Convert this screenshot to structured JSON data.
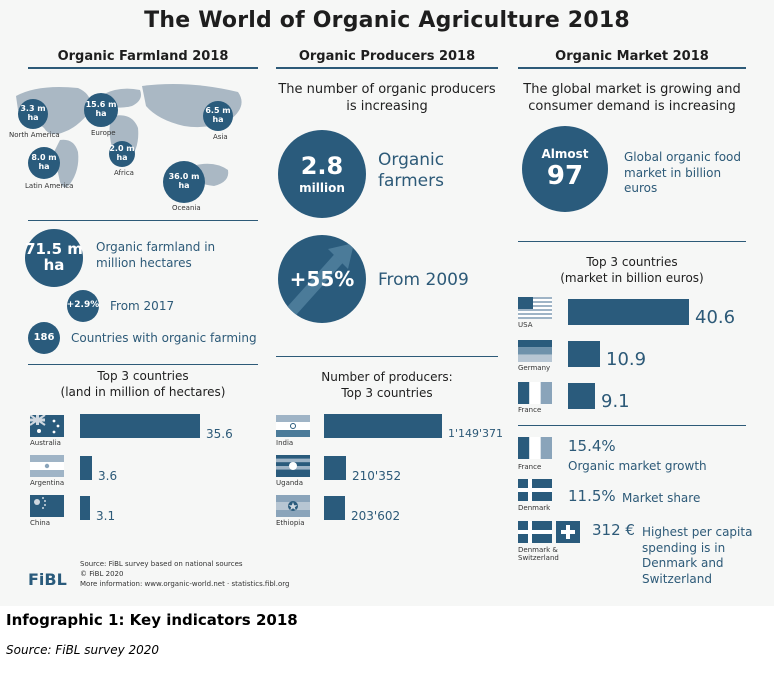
{
  "title": "The World of Organic Agriculture 2018",
  "columns": {
    "farmland": "Organic Farmland 2018",
    "producers": "Organic Producers 2018",
    "market": "Organic Market 2018"
  },
  "map": {
    "regions": [
      {
        "value": "3.3 m ha",
        "name": "North America"
      },
      {
        "value": "15.6 m ha",
        "name": "Europe"
      },
      {
        "value": "6.5 m ha",
        "name": "Asia"
      },
      {
        "value": "8.0 m ha",
        "name": "Latin America"
      },
      {
        "value": "2.0 m ha",
        "name": "Africa"
      },
      {
        "value": "36.0 m ha",
        "name": "Oceania"
      }
    ]
  },
  "farmland": {
    "total_value": "71.5 m",
    "total_unit": "ha",
    "total_text": "Organic farmland in million hectares",
    "growth_value": "+2.9%",
    "growth_text": "From 2017",
    "countries_value": "186",
    "countries_text": "Countries with organic farming",
    "top_title": "Top 3 countries",
    "top_sub": "(land in million of hectares)"
  },
  "producers": {
    "intro": "The number of organic producers is increasing",
    "count_value": "2.8",
    "count_unit": "million",
    "count_text": "Organic farmers",
    "growth_value": "+55%",
    "growth_text": "From 2009",
    "top_title": "Number of producers:",
    "top_sub": "Top 3 countries"
  },
  "market": {
    "intro": "The global market is growing and consumer demand is increasing",
    "almost": "Almost",
    "size_value": "97",
    "size_text": "Global organic food market in billion euros",
    "top_title": "Top 3 countries",
    "top_sub": "(market in billion euros)",
    "growth_pct": "15.4%",
    "growth_text": "Organic market growth",
    "growth_country": "France",
    "share_pct": "11.5%",
    "share_text": "Market share",
    "share_country": "Denmark",
    "percap_value": "312 €",
    "percap_text": "Highest per capita spending is in Denmark and Switzerland",
    "percap_country": "Denmark & Switzerland"
  },
  "footer": {
    "source1": "Source: FiBL survey based on national sources",
    "source2": "© FiBL 2020",
    "source3": "More information: www.organic-world.net · statistics.fibl.org",
    "logo": "FiBL"
  },
  "caption": "Infographic 1: Key indicators 2018",
  "caption_source": "Source: FiBL survey 2020",
  "colors": {
    "accent": "#2a5b7c",
    "text": "#2d5a78"
  },
  "chart_data": [
    {
      "type": "bar",
      "title": "Top 3 countries",
      "xlabel": "",
      "ylabel": "land in million of hectares",
      "categories": [
        "Australia",
        "Argentina",
        "China"
      ],
      "values": [
        35.6,
        3.6,
        3.1
      ],
      "labels": [
        "35.6",
        "3.6",
        "3.1"
      ],
      "xlim": [
        0,
        35.6
      ]
    },
    {
      "type": "bar",
      "title": "Number of producers: Top 3 countries",
      "xlabel": "",
      "ylabel": "",
      "categories": [
        "India",
        "Uganda",
        "Ethiopia"
      ],
      "values": [
        1149371,
        210352,
        203602
      ],
      "labels": [
        "1'149'371",
        "210'352",
        "203'602"
      ],
      "xlim": [
        0,
        1149371
      ]
    },
    {
      "type": "bar",
      "title": "Top 3 countries",
      "xlabel": "",
      "ylabel": "market in billion euros",
      "categories": [
        "USA",
        "Germany",
        "France"
      ],
      "values": [
        40.6,
        10.9,
        9.1
      ],
      "labels": [
        "40.6",
        "10.9",
        "9.1"
      ],
      "xlim": [
        0,
        40.6
      ]
    }
  ]
}
